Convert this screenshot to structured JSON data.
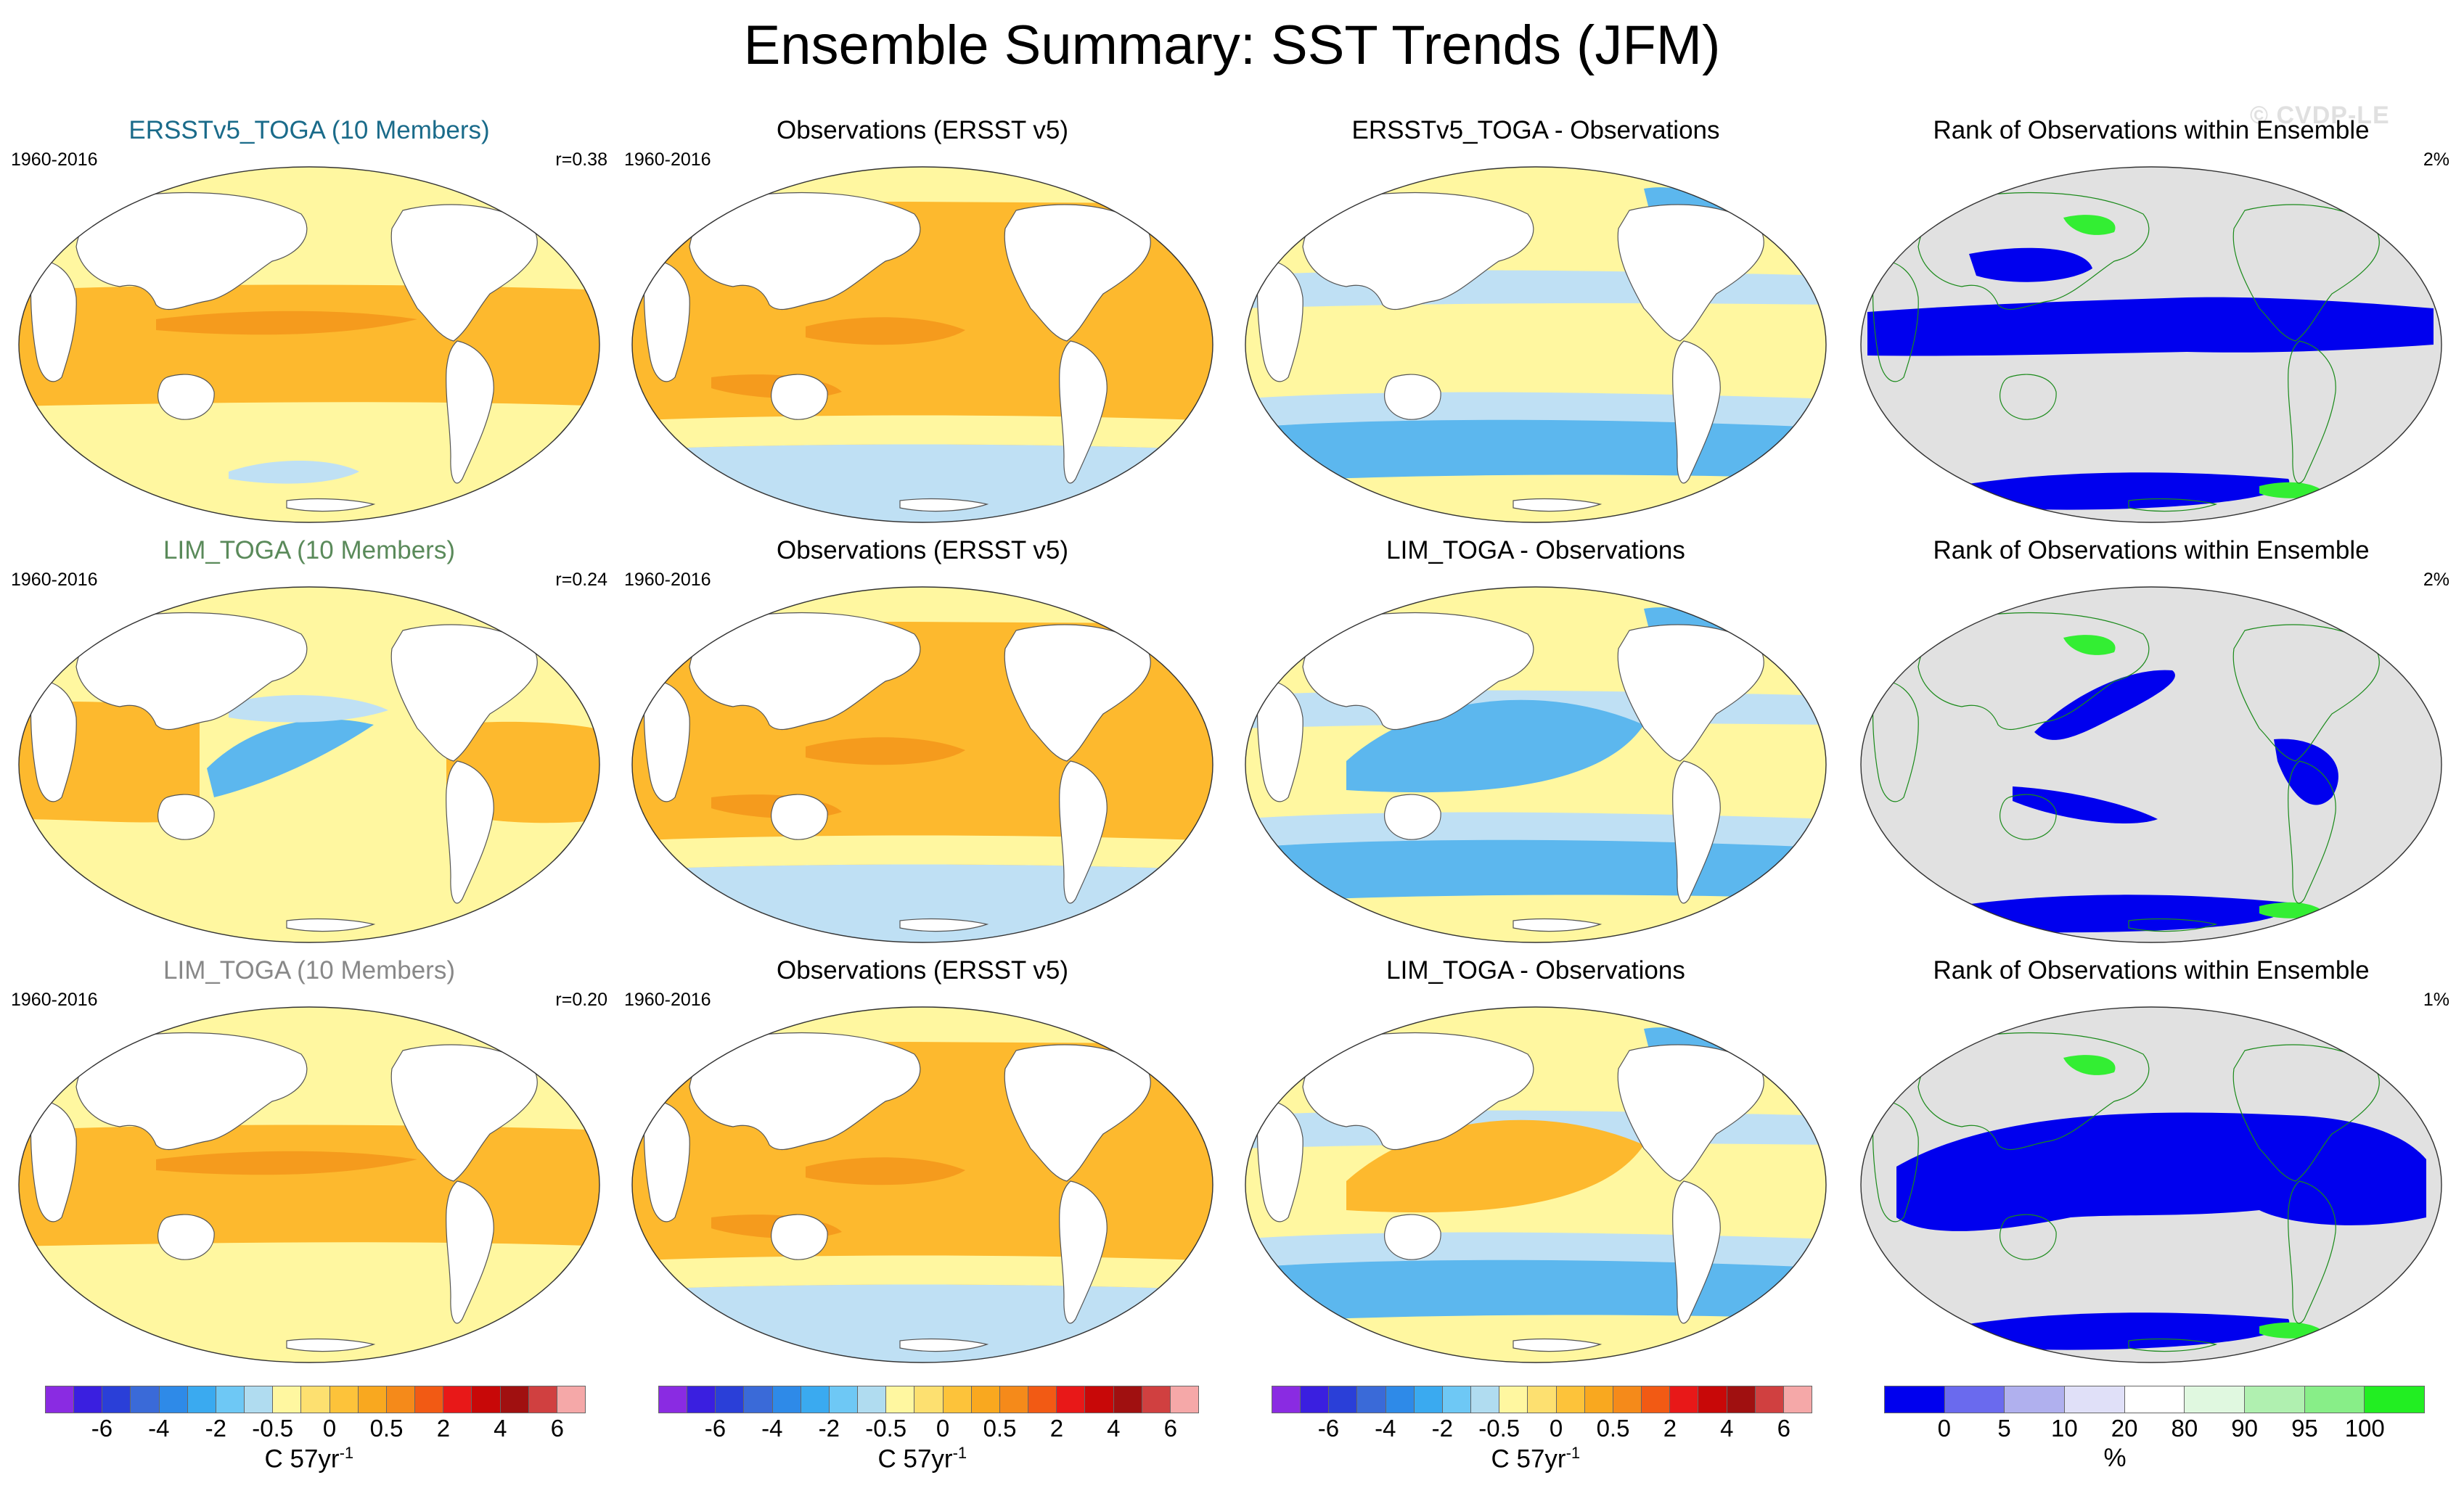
{
  "title": "Ensemble Summary: SST Trends (JFM)",
  "watermark": "© CVDP-LE",
  "colors": {
    "ocean_light_warm": "#fff7a0",
    "warm_mid": "#fdb92e",
    "warm_strong": "#f59b1d",
    "cool_light": "#bfe0f4",
    "cool_mid": "#5cb7ee",
    "land": "#ffffff",
    "rank_land": "#e1e1e1",
    "rank_blue": "#0000ee",
    "rank_green": "#33ee33"
  },
  "rows": [
    {
      "panels": [
        {
          "title": "ERSSTv5_TOGA (10 Members)",
          "title_color": "#1a6b8a",
          "years": "1960-2016",
          "stat": "r=0.38",
          "kind": "model"
        },
        {
          "title": "Observations (ERSST v5)",
          "title_color": "#000000",
          "years": "1960-2016",
          "stat": "",
          "kind": "obs"
        },
        {
          "title": "ERSSTv5_TOGA - Observations",
          "title_color": "#000000",
          "years": "",
          "stat": "",
          "kind": "diff"
        },
        {
          "title": "Rank of Observations within Ensemble",
          "title_color": "#000000",
          "years": "",
          "stat": "2%",
          "kind": "rank"
        }
      ]
    },
    {
      "panels": [
        {
          "title": "LIM_TOGA (10 Members)",
          "title_color": "#5a8a5a",
          "years": "1960-2016",
          "stat": "r=0.24",
          "kind": "model"
        },
        {
          "title": "Observations (ERSST v5)",
          "title_color": "#000000",
          "years": "1960-2016",
          "stat": "",
          "kind": "obs"
        },
        {
          "title": "LIM_TOGA - Observations",
          "title_color": "#000000",
          "years": "",
          "stat": "",
          "kind": "diff"
        },
        {
          "title": "Rank of Observations within Ensemble",
          "title_color": "#000000",
          "years": "",
          "stat": "2%",
          "kind": "rank"
        }
      ]
    },
    {
      "panels": [
        {
          "title": "LIM_TOGA (10 Members)",
          "title_color": "#888888",
          "years": "1960-2016",
          "stat": "r=0.20",
          "kind": "model"
        },
        {
          "title": "Observations (ERSST v5)",
          "title_color": "#000000",
          "years": "1960-2016",
          "stat": "",
          "kind": "obs"
        },
        {
          "title": "LIM_TOGA - Observations",
          "title_color": "#000000",
          "years": "",
          "stat": "",
          "kind": "diff"
        },
        {
          "title": "Rank of Observations within Ensemble",
          "title_color": "#000000",
          "years": "",
          "stat": "1%",
          "kind": "rank"
        }
      ]
    }
  ],
  "sst_colorbar": {
    "colors": [
      "#8a2be2",
      "#3a1fe0",
      "#2a3fd8",
      "#3a6ad8",
      "#2e8ae8",
      "#3aaaf0",
      "#6ec8f5",
      "#b0dcf0",
      "#fff7a0",
      "#fde070",
      "#fdc33a",
      "#f9a81f",
      "#f58a1a",
      "#f25a14",
      "#e81818",
      "#c80808",
      "#a01010",
      "#d04040",
      "#f5a8a8"
    ],
    "ticks": [
      "-6",
      "-4",
      "-2",
      "-0.5",
      "0",
      "0.5",
      "2",
      "4",
      "6"
    ],
    "units": "C 57yr",
    "units_sup": "-1"
  },
  "rank_colorbar": {
    "colors": [
      "#0000ee",
      "#6a6aee",
      "#b0b0ee",
      "#e0e0f8",
      "#ffffff",
      "#e0f8e0",
      "#b0f0b0",
      "#88ee88",
      "#22ee22"
    ],
    "ticks": [
      "0",
      "5",
      "10",
      "20",
      "80",
      "90",
      "95",
      "100"
    ],
    "units": "%"
  }
}
